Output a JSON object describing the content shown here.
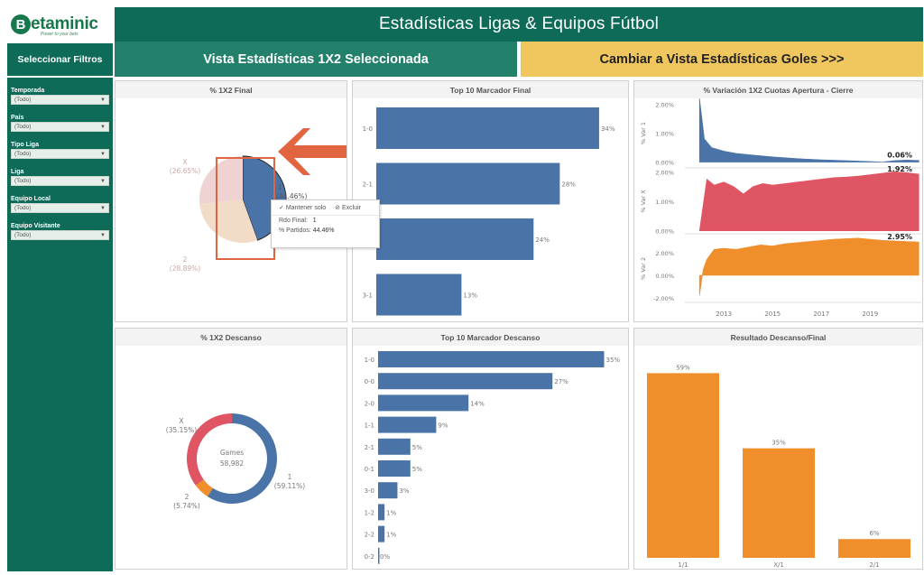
{
  "logo": {
    "mark": "B",
    "name": "etaminic",
    "tagline": "Power to your bets"
  },
  "header": {
    "title": "Estadísticas Ligas & Equipos Fútbol"
  },
  "sidebar": {
    "title": "Seleccionar Filtros",
    "filters": [
      {
        "label": "Temporada",
        "value": "(Todo)"
      },
      {
        "label": "País",
        "value": "(Todo)"
      },
      {
        "label": "Tipo Liga",
        "value": "(Todo)"
      },
      {
        "label": "Liga",
        "value": "(Todo)"
      },
      {
        "label": "Equipo Local",
        "value": "(Todo)"
      },
      {
        "label": "Equipo Visitante",
        "value": "(Todo)"
      }
    ]
  },
  "tabs": {
    "selected": "Vista Estadísticas 1X2 Seleccionada",
    "switch": "Cambiar a Vista Estadísticas Goles >>>"
  },
  "panels": {
    "p1": "% 1X2 Final",
    "p2": "Top 10 Marcador Final",
    "p3": "% Variación 1X2 Cuotas Apertura - Cierre",
    "p4": "% 1X2 Descanso",
    "p5": "Top 10 Marcador Descanso",
    "p6": "Resultado Descanso/Final"
  },
  "tooltip": {
    "keep": "Mantener solo",
    "exclude": "Excluir",
    "rdo_label": "Rdo Final:",
    "rdo_value": "1",
    "pct_label": "% Partidos:",
    "pct_value": "44.46%"
  },
  "colors": {
    "primary": "#0e6b58",
    "blue": "#4a74a8",
    "red": "#e05563",
    "orange": "#ef8e2b",
    "yellow": "#f0c75e",
    "arrow": "#e06540"
  },
  "chart_data": [
    {
      "type": "pie",
      "title": "% 1X2 Final",
      "slices": [
        {
          "name": "1",
          "value": 44.46,
          "label": "(44.46%)",
          "color": "#4a74a8",
          "highlighted": true
        },
        {
          "name": "2",
          "value": 28.89,
          "label": "(28.89%)",
          "color": "#f2dcc7"
        },
        {
          "name": "X",
          "value": 26.65,
          "label": "(26.65%)",
          "color": "#efd3d3"
        }
      ]
    },
    {
      "type": "bar",
      "orientation": "horizontal",
      "title": "Top 10 Marcador Final",
      "categories": [
        "1-0",
        "2-1",
        "2-0",
        "3-1"
      ],
      "values": [
        34,
        28,
        24,
        13
      ],
      "labels": [
        "34%",
        "28%",
        "24%",
        "13%"
      ],
      "xlim": [
        0,
        38
      ]
    },
    {
      "type": "area",
      "title": "% Variación 1X2 Cuotas Apertura - Cierre",
      "x_ticks": [
        "2013",
        "2015",
        "2017",
        "2019"
      ],
      "x_range": [
        2011.4,
        2021.1
      ],
      "series": [
        {
          "name": "% Var 1",
          "ylim": [
            -0.2,
            2.2
          ],
          "ticks": [
            "2.00%",
            "1.00%",
            "0.00%"
          ],
          "tick_values": [
            2,
            1,
            0
          ],
          "last_label": "0.06%",
          "color": "#4a74a8",
          "x": [
            2012.0,
            2012.2,
            2012.5,
            2013.0,
            2013.5,
            2014.0,
            2015.0,
            2016.0,
            2017.0,
            2018.0,
            2019.0,
            2019.5,
            2020.0,
            2020.5,
            2021.0
          ],
          "values": [
            2.2,
            0.8,
            0.5,
            0.38,
            0.3,
            0.26,
            0.18,
            0.12,
            0.08,
            0.05,
            0.02,
            0.0,
            0.05,
            0.07,
            0.06
          ]
        },
        {
          "name": "% Var X",
          "ylim": [
            -0.1,
            2.1
          ],
          "ticks": [
            "2.00%",
            "1.00%",
            "0.00%"
          ],
          "tick_values": [
            2,
            1,
            0
          ],
          "last_label": "1.92%",
          "color": "#e05563",
          "x": [
            2012.0,
            2012.3,
            2012.6,
            2013.0,
            2013.4,
            2013.8,
            2014.2,
            2014.6,
            2015.0,
            2015.5,
            2016.0,
            2016.5,
            2017.0,
            2017.5,
            2018.0,
            2018.5,
            2019.0,
            2019.5,
            2020.0,
            2020.5,
            2021.0
          ],
          "values": [
            0.0,
            1.75,
            1.55,
            1.65,
            1.5,
            1.25,
            1.5,
            1.6,
            1.55,
            1.6,
            1.65,
            1.7,
            1.75,
            1.8,
            1.82,
            1.85,
            1.9,
            1.95,
            2.0,
            1.97,
            1.92
          ]
        },
        {
          "name": "% Var 2",
          "ylim": [
            -2.4,
            3.6
          ],
          "ticks": [
            "2.00%",
            "0.00%",
            "-2.00%"
          ],
          "tick_values": [
            2,
            0,
            -2
          ],
          "last_label": "2.95%",
          "color": "#ef8e2b",
          "x": [
            2012.0,
            2012.15,
            2012.3,
            2012.6,
            2013.0,
            2013.5,
            2014.0,
            2014.5,
            2015.0,
            2015.5,
            2016.0,
            2016.5,
            2017.0,
            2017.5,
            2018.0,
            2018.5,
            2019.0,
            2019.5,
            2020.0,
            2020.5,
            2021.0
          ],
          "values": [
            -1.8,
            0.5,
            1.4,
            2.3,
            2.4,
            2.3,
            2.5,
            2.7,
            2.6,
            2.8,
            2.9,
            3.0,
            3.1,
            3.2,
            3.25,
            3.3,
            3.2,
            3.1,
            3.05,
            3.0,
            2.95
          ]
        }
      ]
    },
    {
      "type": "pie",
      "subtype": "donut",
      "title": "% 1X2 Descanso",
      "center_label": "Games",
      "center_value": "58,982",
      "slices": [
        {
          "name": "1",
          "value": 59.11,
          "label": "(59.11%)",
          "color": "#4a74a8"
        },
        {
          "name": "2",
          "value": 5.74,
          "label": "(5.74%)",
          "color": "#ef8e2b"
        },
        {
          "name": "X",
          "value": 35.15,
          "label": "(35.15%)",
          "color": "#e05563"
        }
      ]
    },
    {
      "type": "bar",
      "orientation": "horizontal",
      "title": "Top 10 Marcador Descanso",
      "categories": [
        "1-0",
        "0-0",
        "2-0",
        "1-1",
        "2-1",
        "0-1",
        "3-0",
        "1-2",
        "2-2",
        "0-2"
      ],
      "values": [
        35,
        27,
        14,
        9,
        5,
        5,
        3,
        1,
        1,
        0
      ],
      "labels": [
        "35%",
        "27%",
        "14%",
        "9%",
        "5%",
        "5%",
        "3%",
        "1%",
        "1%",
        "0%"
      ],
      "xlim": [
        0,
        38
      ]
    },
    {
      "type": "bar",
      "title": "Resultado Descanso/Final",
      "categories": [
        "1/1",
        "X/1",
        "2/1"
      ],
      "values": [
        59,
        35,
        6
      ],
      "labels": [
        "59%",
        "35%",
        "6%"
      ],
      "ylim": [
        0,
        62
      ]
    }
  ]
}
